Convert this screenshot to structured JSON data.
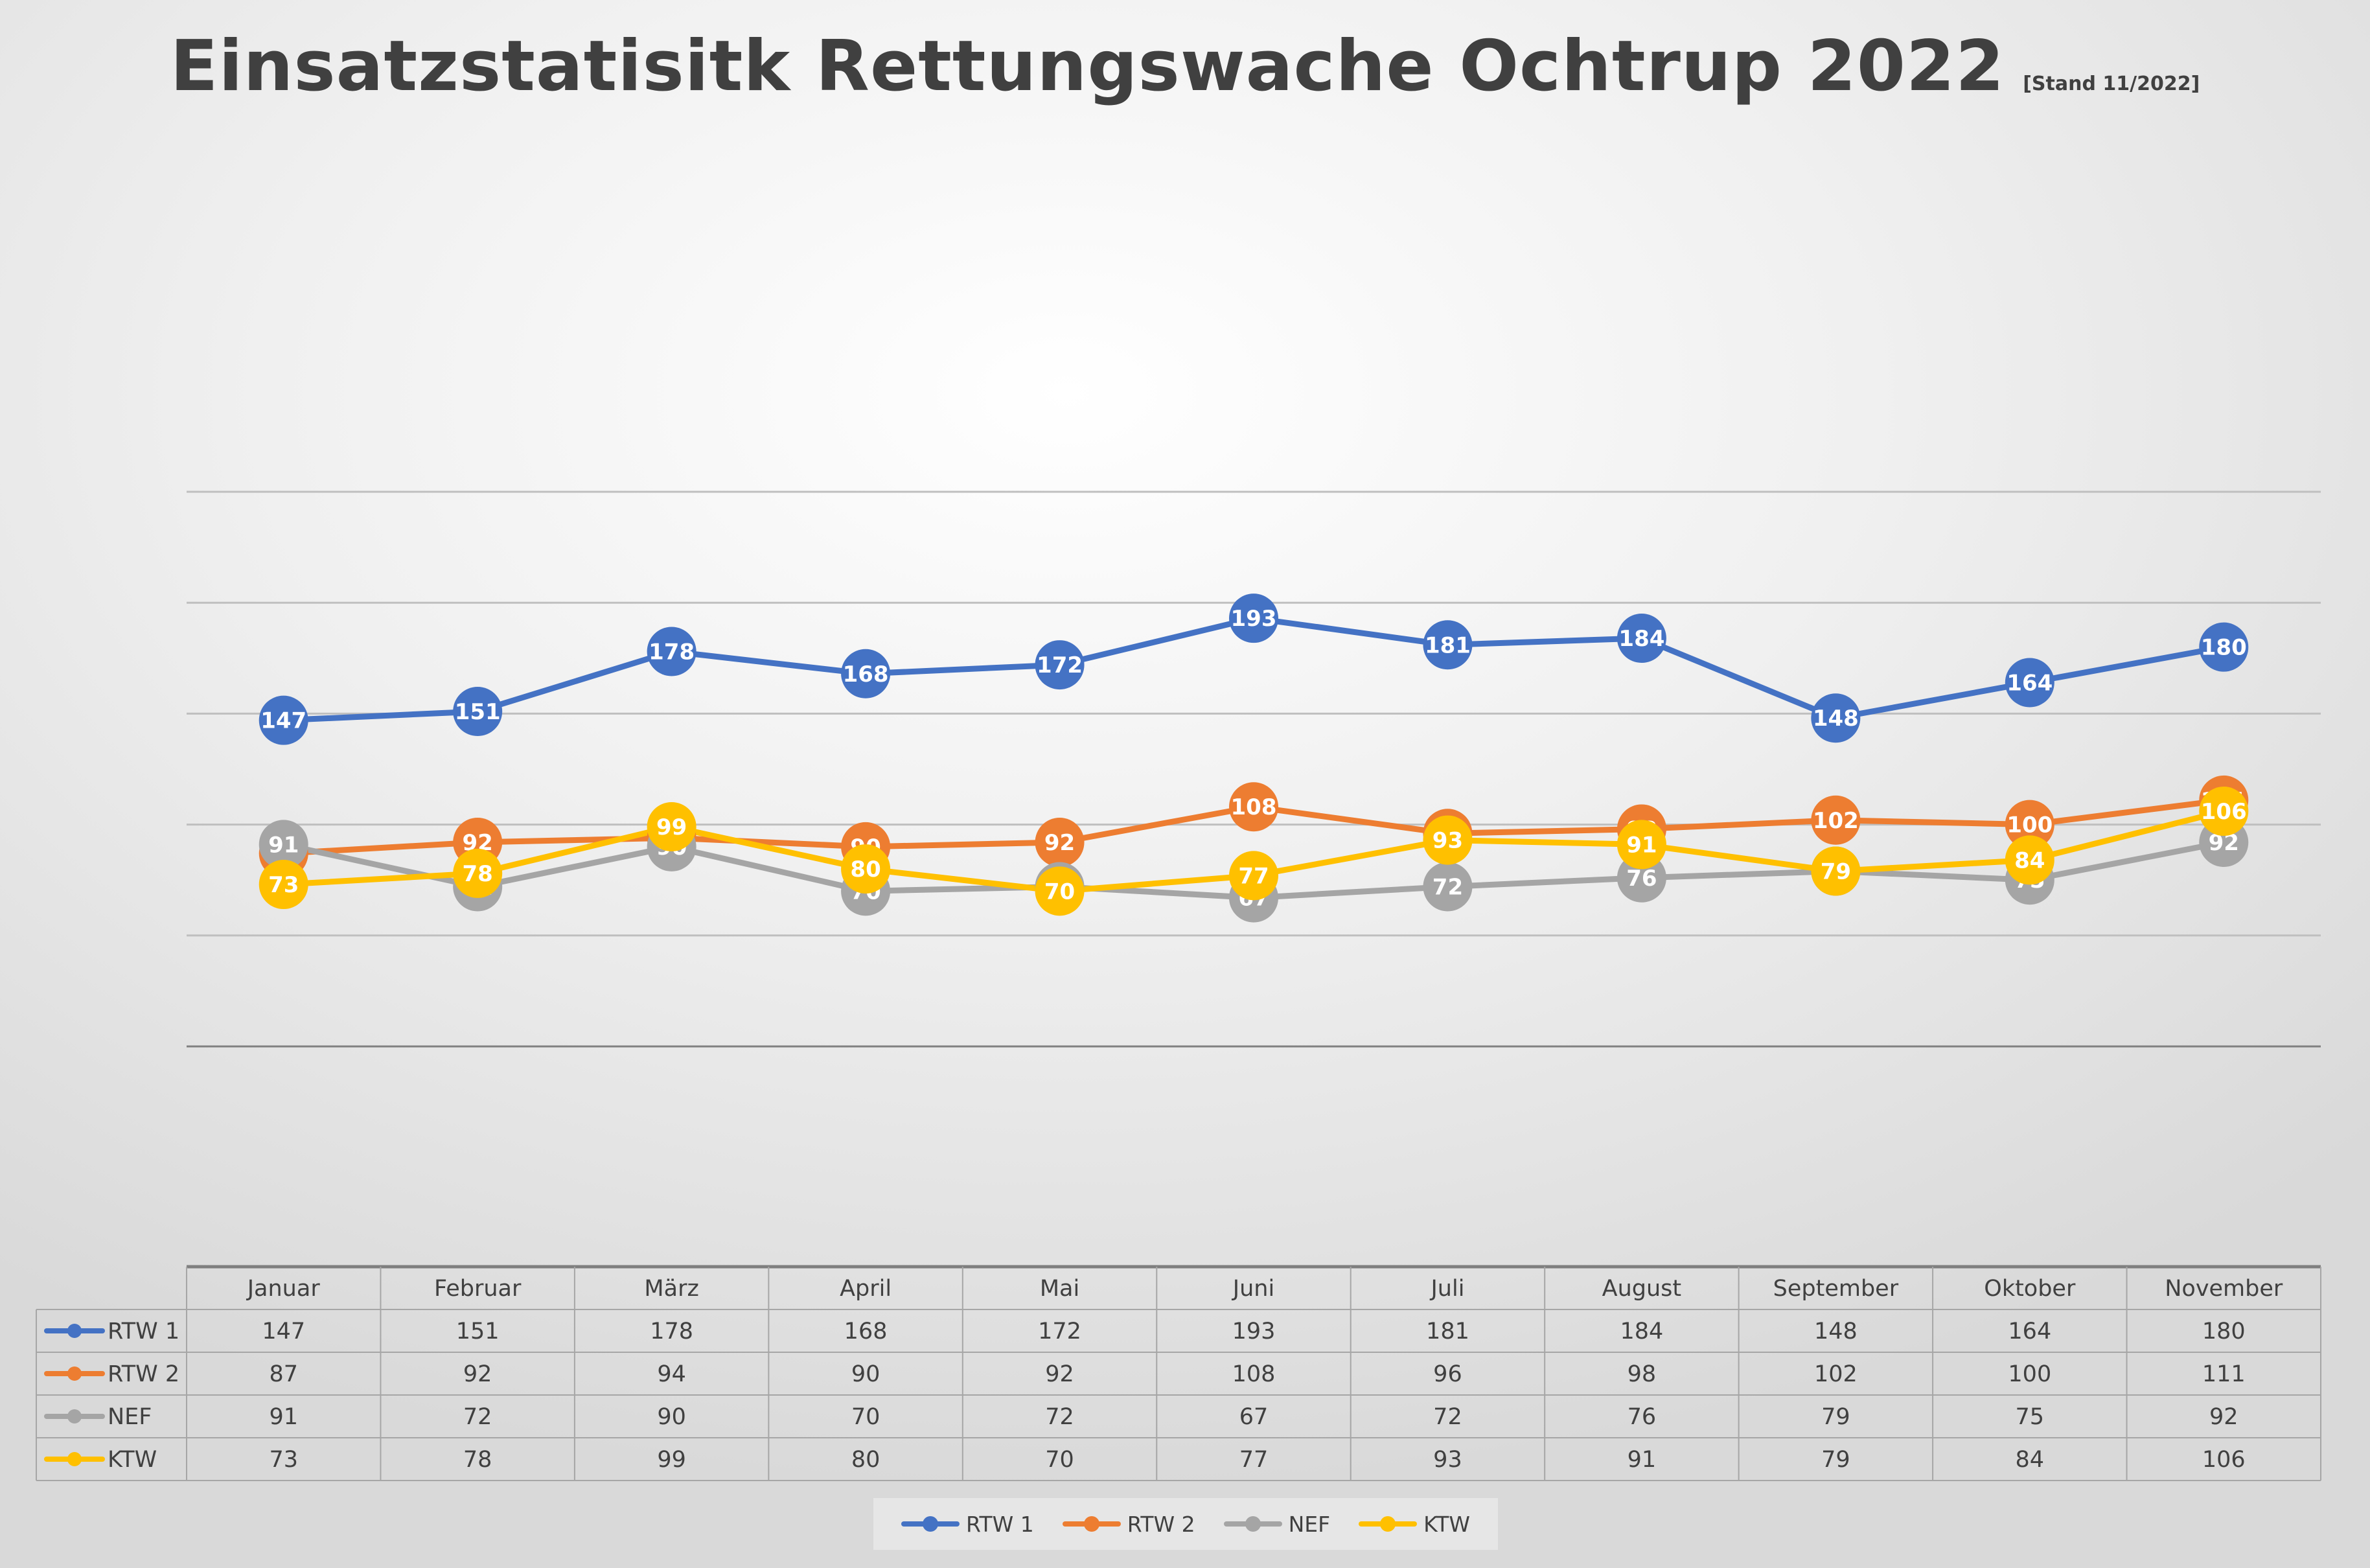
{
  "title": "Einsatzstatisitk Rettungswache Ochtrup 2022",
  "subtitle": "[Stand 11/2022]",
  "chart_data": {
    "type": "line",
    "categories": [
      "Januar",
      "Februar",
      "März",
      "April",
      "Mai",
      "Juni",
      "Juli",
      "August",
      "September",
      "Oktober",
      "November"
    ],
    "series": [
      {
        "name": "RTW 1",
        "color": "#4472C4",
        "values": [
          147,
          151,
          178,
          168,
          172,
          193,
          181,
          184,
          148,
          164,
          180
        ]
      },
      {
        "name": "RTW 2",
        "color": "#ED7D31",
        "values": [
          87,
          92,
          94,
          90,
          92,
          108,
          96,
          98,
          102,
          100,
          111
        ]
      },
      {
        "name": "NEF",
        "color": "#A5A5A5",
        "values": [
          91,
          72,
          90,
          70,
          72,
          67,
          72,
          76,
          79,
          75,
          92
        ]
      },
      {
        "name": "KTW",
        "color": "#FFC000",
        "values": [
          73,
          78,
          99,
          80,
          70,
          77,
          93,
          91,
          79,
          84,
          106
        ]
      }
    ],
    "ylim": [
      0,
      250
    ],
    "gridlines": [
      50,
      100,
      150,
      200,
      250
    ],
    "grid": true,
    "data_labels": true,
    "data_table": true,
    "legend_position": "bottom"
  }
}
